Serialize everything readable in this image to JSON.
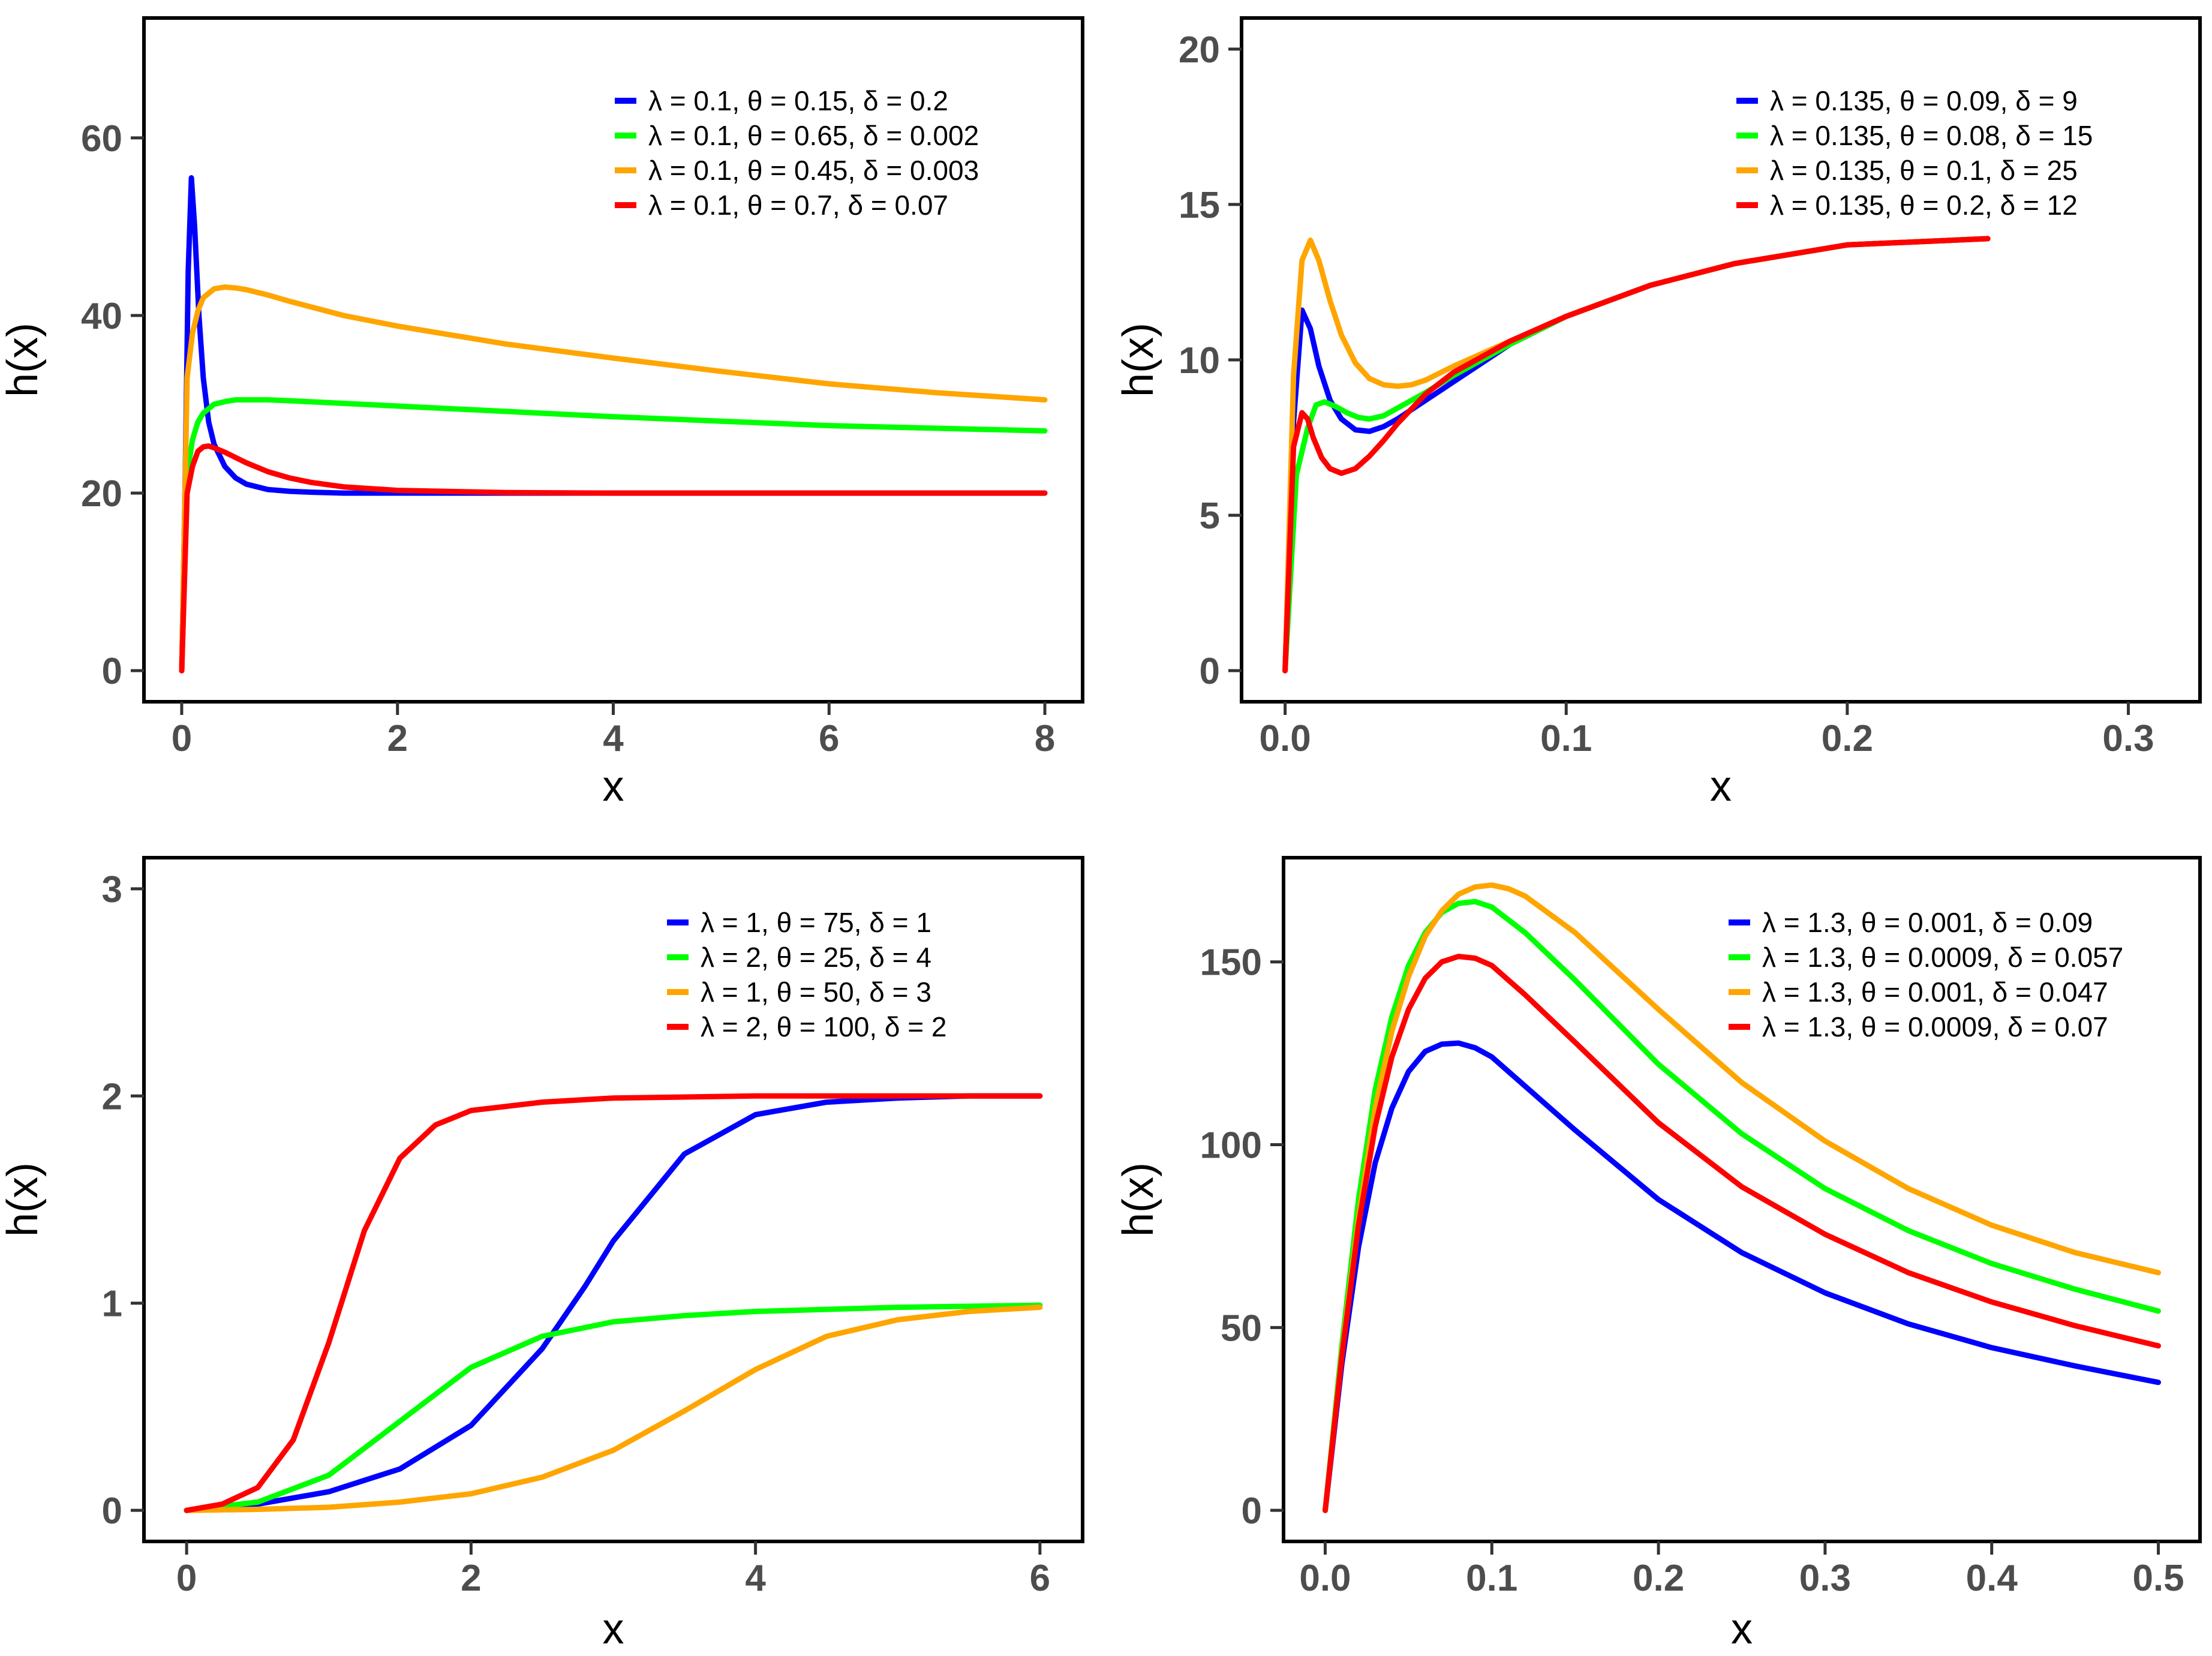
{
  "colors": {
    "blue": "#0000ff",
    "green": "#00ff00",
    "orange": "#ffa500",
    "red": "#ff0000"
  },
  "chart_data": [
    {
      "type": "line",
      "xlabel": "x",
      "ylabel": "h(x)",
      "xlim": [
        -0.35,
        8.35
      ],
      "ylim": [
        -3.5,
        73.5
      ],
      "xticks": [
        0,
        2,
        4,
        6,
        8
      ],
      "xtick_labels": [
        "0",
        "2",
        "4",
        "6",
        "8"
      ],
      "yticks": [
        0,
        20,
        40,
        60
      ],
      "ytick_labels": [
        "0",
        "20",
        "40",
        "60"
      ],
      "series": [
        {
          "name": "λ = 0.1, θ = 0.15, δ = 0.2",
          "color": "blue",
          "x": [
            0,
            0.03,
            0.06,
            0.09,
            0.12,
            0.16,
            0.2,
            0.25,
            0.3,
            0.4,
            0.5,
            0.6,
            0.8,
            1.0,
            1.2,
            1.5,
            2,
            3,
            4,
            5,
            6,
            7,
            8
          ],
          "y": [
            0,
            20,
            45,
            55.5,
            50,
            40,
            33,
            28,
            25.5,
            23,
            21.7,
            21,
            20.4,
            20.2,
            20.1,
            20,
            20,
            20,
            20,
            20,
            20,
            20,
            20
          ]
        },
        {
          "name": "λ = 0.1, θ = 0.65, δ = 0.002",
          "color": "green",
          "x": [
            0,
            0.05,
            0.1,
            0.15,
            0.2,
            0.3,
            0.4,
            0.5,
            0.6,
            0.8,
            1,
            2,
            3,
            4,
            5,
            6,
            7,
            8
          ],
          "y": [
            0,
            22,
            26,
            28,
            29,
            30,
            30.3,
            30.5,
            30.5,
            30.5,
            30.4,
            29.8,
            29.2,
            28.6,
            28.1,
            27.6,
            27.3,
            27
          ]
        },
        {
          "name": "λ = 0.1, θ = 0.45, δ = 0.003",
          "color": "orange",
          "x": [
            0,
            0.05,
            0.1,
            0.15,
            0.2,
            0.3,
            0.4,
            0.5,
            0.6,
            0.8,
            1,
            1.5,
            2,
            3,
            4,
            5,
            6,
            7,
            8
          ],
          "y": [
            0,
            33,
            38,
            40.5,
            42,
            43,
            43.2,
            43.1,
            42.9,
            42.3,
            41.6,
            40,
            38.8,
            36.8,
            35.2,
            33.7,
            32.3,
            31.3,
            30.5
          ]
        },
        {
          "name": "λ = 0.1, θ = 0.7, δ = 0.07",
          "color": "red",
          "x": [
            0,
            0.05,
            0.1,
            0.15,
            0.2,
            0.25,
            0.3,
            0.4,
            0.5,
            0.6,
            0.8,
            1,
            1.2,
            1.5,
            2,
            3,
            4,
            5,
            6,
            7,
            8
          ],
          "y": [
            0,
            20,
            23,
            24.7,
            25.2,
            25.3,
            25.1,
            24.6,
            24,
            23.4,
            22.4,
            21.7,
            21.2,
            20.7,
            20.3,
            20.05,
            20,
            20,
            20,
            20,
            20
          ]
        }
      ]
    },
    {
      "type": "line",
      "xlabel": "x",
      "ylabel": "h(x)",
      "xlim": [
        -0.0155,
        0.3255
      ],
      "ylim": [
        -1.0,
        21.0
      ],
      "xticks": [
        0,
        0.1,
        0.2,
        0.3
      ],
      "xtick_labels": [
        "0.0",
        "0.1",
        "0.2",
        "0.3"
      ],
      "yticks": [
        0,
        5,
        10,
        15,
        20
      ],
      "ytick_labels": [
        "0",
        "5",
        "10",
        "15",
        "20"
      ],
      "series": [
        {
          "name": "λ = 0.135, θ = 0.09, δ = 9",
          "color": "blue",
          "x": [
            0,
            0.003,
            0.006,
            0.009,
            0.012,
            0.016,
            0.02,
            0.025,
            0.03,
            0.035,
            0.04,
            0.05,
            0.06,
            0.08,
            0.1,
            0.13,
            0.16,
            0.2,
            0.25
          ],
          "y": [
            0,
            8,
            11.6,
            11,
            9.8,
            8.7,
            8.1,
            7.75,
            7.7,
            7.85,
            8.1,
            8.7,
            9.3,
            10.5,
            11.4,
            12.4,
            13.1,
            13.7,
            13.9
          ]
        },
        {
          "name": "λ = 0.135, θ = 0.08, δ = 15",
          "color": "green",
          "x": [
            0,
            0.004,
            0.008,
            0.011,
            0.014,
            0.018,
            0.022,
            0.026,
            0.03,
            0.035,
            0.04,
            0.05,
            0.06,
            0.08,
            0.1,
            0.13,
            0.16,
            0.2,
            0.25
          ],
          "y": [
            0,
            6.3,
            7.8,
            8.55,
            8.65,
            8.5,
            8.3,
            8.15,
            8.1,
            8.2,
            8.45,
            8.95,
            9.5,
            10.5,
            11.4,
            12.4,
            13.1,
            13.7,
            13.9
          ]
        },
        {
          "name": "λ = 0.135, θ = 0.1, δ = 25",
          "color": "orange",
          "x": [
            0,
            0.003,
            0.006,
            0.009,
            0.012,
            0.016,
            0.02,
            0.025,
            0.03,
            0.035,
            0.04,
            0.045,
            0.05,
            0.06,
            0.08,
            0.1,
            0.13,
            0.16,
            0.2,
            0.25
          ],
          "y": [
            0,
            9.5,
            13.2,
            13.85,
            13.2,
            11.9,
            10.8,
            9.9,
            9.4,
            9.2,
            9.15,
            9.2,
            9.35,
            9.8,
            10.6,
            11.4,
            12.4,
            13.1,
            13.7,
            13.9
          ]
        },
        {
          "name": "λ = 0.135, θ = 0.2, δ = 12",
          "color": "red",
          "x": [
            0,
            0.003,
            0.006,
            0.008,
            0.01,
            0.013,
            0.016,
            0.02,
            0.025,
            0.03,
            0.035,
            0.04,
            0.05,
            0.06,
            0.07,
            0.08,
            0.1,
            0.13,
            0.16,
            0.2,
            0.25
          ],
          "y": [
            0,
            7.2,
            8.3,
            8.1,
            7.5,
            6.85,
            6.5,
            6.35,
            6.5,
            6.9,
            7.4,
            7.95,
            8.9,
            9.6,
            10.1,
            10.6,
            11.4,
            12.4,
            13.1,
            13.7,
            13.9
          ]
        }
      ]
    },
    {
      "type": "line",
      "xlabel": "x",
      "ylabel": "h(x)",
      "xlim": [
        -0.3,
        6.3
      ],
      "ylim": [
        -0.15,
        3.15
      ],
      "xticks": [
        0,
        2,
        4,
        6
      ],
      "xtick_labels": [
        "0",
        "2",
        "4",
        "6"
      ],
      "yticks": [
        0,
        1,
        2,
        3
      ],
      "ytick_labels": [
        "0",
        "1",
        "2",
        "3"
      ],
      "series": [
        {
          "name": "λ = 1, θ = 75, δ = 1",
          "color": "blue",
          "x": [
            0,
            0.5,
            1,
            1.5,
            2,
            2.5,
            2.8,
            3.0,
            3.5,
            4,
            4.5,
            5,
            5.5,
            6
          ],
          "y": [
            0,
            0.03,
            0.09,
            0.2,
            0.41,
            0.78,
            1.08,
            1.3,
            1.72,
            1.91,
            1.97,
            1.99,
            2.0,
            2.0
          ]
        },
        {
          "name": "λ = 2, θ = 25, δ = 4",
          "color": "green",
          "x": [
            0,
            0.5,
            1,
            1.5,
            2,
            2.5,
            3,
            3.5,
            4,
            5,
            6
          ],
          "y": [
            0,
            0.04,
            0.17,
            0.43,
            0.69,
            0.84,
            0.91,
            0.94,
            0.96,
            0.98,
            0.99
          ]
        },
        {
          "name": "λ = 1, θ = 50, δ = 3",
          "color": "orange",
          "x": [
            0,
            0.5,
            1,
            1.5,
            2,
            2.5,
            3,
            3.5,
            4,
            4.5,
            5,
            5.5,
            6
          ],
          "y": [
            0,
            0.005,
            0.015,
            0.04,
            0.08,
            0.16,
            0.29,
            0.48,
            0.68,
            0.84,
            0.92,
            0.96,
            0.98
          ]
        },
        {
          "name": "λ = 2, θ = 100, δ = 2",
          "color": "red",
          "x": [
            0,
            0.25,
            0.5,
            0.75,
            1,
            1.25,
            1.5,
            1.75,
            2,
            2.5,
            3,
            4,
            5,
            6
          ],
          "y": [
            0,
            0.03,
            0.11,
            0.34,
            0.81,
            1.35,
            1.7,
            1.86,
            1.93,
            1.97,
            1.99,
            2.0,
            2.0,
            2.0
          ]
        }
      ]
    },
    {
      "type": "line",
      "xlabel": "x",
      "ylabel": "h(x)",
      "xlim": [
        -0.025,
        0.525
      ],
      "ylim": [
        -8.5,
        178.5
      ],
      "xticks": [
        0,
        0.1,
        0.2,
        0.3,
        0.4,
        0.5
      ],
      "xtick_labels": [
        "0.0",
        "0.1",
        "0.2",
        "0.3",
        "0.4",
        "0.5"
      ],
      "yticks": [
        0,
        50,
        100,
        150
      ],
      "ytick_labels": [
        "0",
        "50",
        "100",
        "150"
      ],
      "series": [
        {
          "name": "λ = 1.3, θ = 0.001, δ = 0.09",
          "color": "blue",
          "x": [
            0,
            0.01,
            0.02,
            0.03,
            0.04,
            0.05,
            0.06,
            0.07,
            0.08,
            0.09,
            0.1,
            0.12,
            0.15,
            0.2,
            0.25,
            0.3,
            0.35,
            0.4,
            0.45,
            0.5
          ],
          "y": [
            0,
            40,
            72,
            95,
            110,
            120,
            125.5,
            127.5,
            127.8,
            126.5,
            124,
            116,
            104,
            85,
            70.5,
            59.5,
            51,
            44.5,
            39.5,
            35
          ]
        },
        {
          "name": "λ = 1.3, θ = 0.0009, δ = 0.057",
          "color": "green",
          "x": [
            0,
            0.01,
            0.02,
            0.03,
            0.04,
            0.05,
            0.06,
            0.07,
            0.08,
            0.09,
            0.1,
            0.12,
            0.15,
            0.2,
            0.25,
            0.3,
            0.35,
            0.4,
            0.45,
            0.5
          ],
          "y": [
            0,
            45,
            85,
            115,
            135,
            149,
            158,
            163.5,
            166,
            166.5,
            165,
            158,
            145,
            122,
            103,
            88,
            76.5,
            67.5,
            60.5,
            54.5
          ]
        },
        {
          "name": "λ = 1.3, θ = 0.001, δ = 0.047",
          "color": "orange",
          "x": [
            0,
            0.01,
            0.02,
            0.03,
            0.04,
            0.05,
            0.06,
            0.07,
            0.08,
            0.09,
            0.1,
            0.11,
            0.12,
            0.15,
            0.2,
            0.25,
            0.3,
            0.35,
            0.4,
            0.45,
            0.5
          ],
          "y": [
            0,
            43,
            80,
            110,
            131,
            146,
            157,
            164,
            168.5,
            170.5,
            171,
            170,
            168,
            158,
            137,
            117,
            101,
            88,
            78,
            70.5,
            65
          ]
        },
        {
          "name": "λ = 1.3, θ = 0.0009, δ = 0.07",
          "color": "red",
          "x": [
            0,
            0.01,
            0.02,
            0.03,
            0.04,
            0.05,
            0.06,
            0.07,
            0.08,
            0.09,
            0.1,
            0.12,
            0.15,
            0.2,
            0.25,
            0.3,
            0.35,
            0.4,
            0.45,
            0.5
          ],
          "y": [
            0,
            42,
            78,
            105,
            124,
            137,
            145.5,
            150,
            151.5,
            151,
            149,
            141,
            128,
            106,
            88.5,
            75.5,
            65,
            57,
            50.5,
            45
          ]
        }
      ]
    }
  ]
}
